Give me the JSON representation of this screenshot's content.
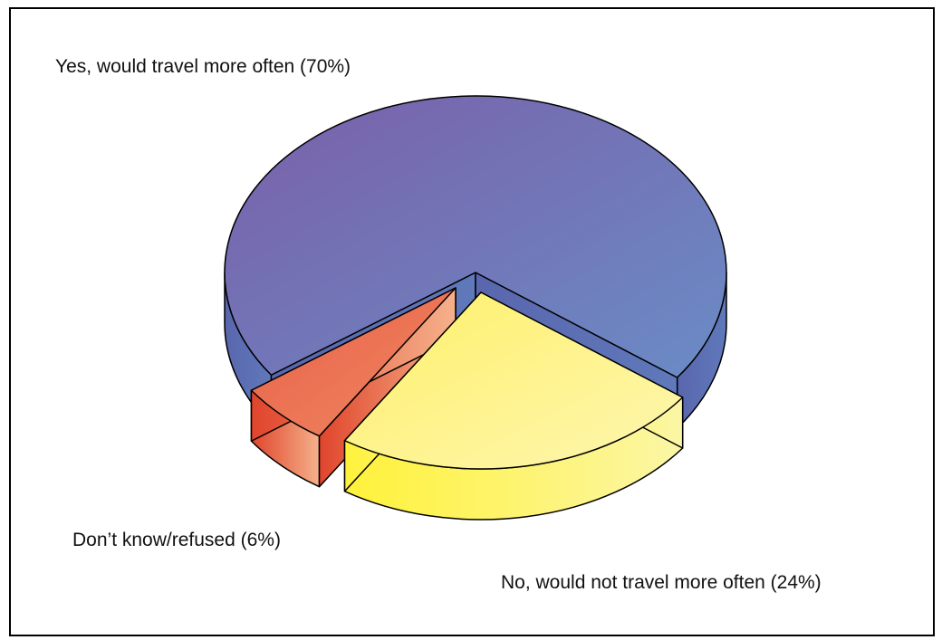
{
  "chart_data": {
    "type": "pie",
    "style": "3d-exploded",
    "slices": [
      {
        "label": "Yes, would travel more often (70%)",
        "value": 70,
        "color": "#6f74b0"
      },
      {
        "label": "No, would not travel more often (24%)",
        "value": 24,
        "color": "#fbf27a"
      },
      {
        "label": "Don’t know/refused (6%)",
        "value": 6,
        "color": "#ea7050"
      }
    ],
    "legend": "none"
  }
}
